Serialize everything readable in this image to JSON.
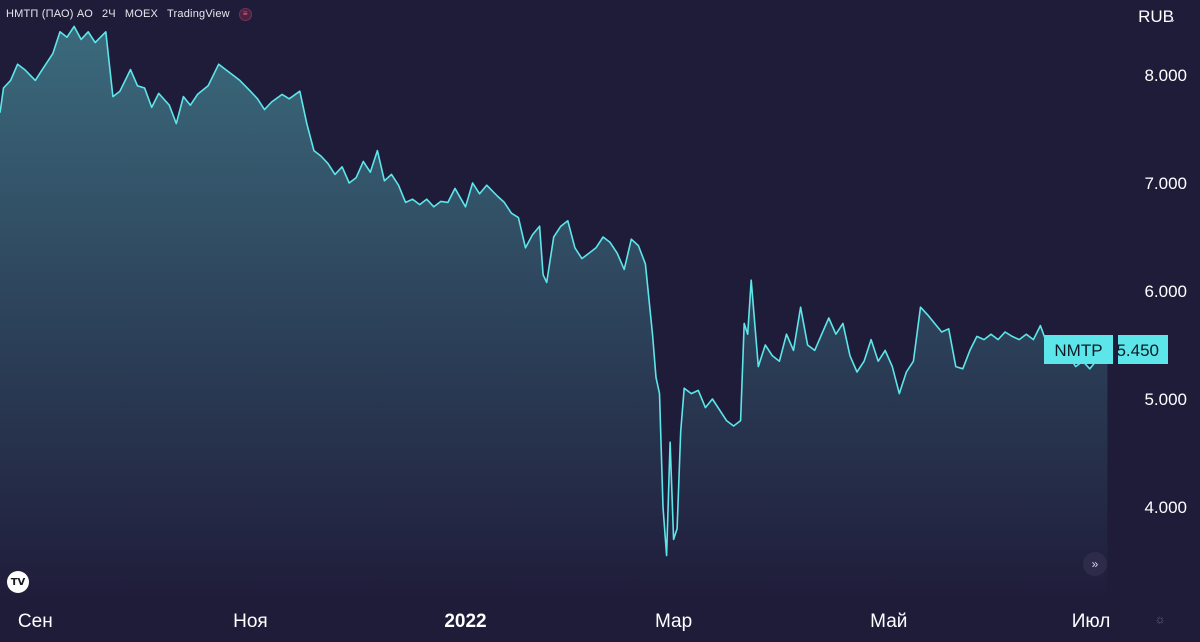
{
  "header": {
    "symbol": "НМТП (ПАО) АО",
    "interval": "2Ч",
    "exchange": "MOEX",
    "provider": "TradingView",
    "exchange_icon": "exchange-badge-icon"
  },
  "currency_label": "RUB",
  "price_tag": {
    "ticker": "NMTP",
    "value": "5.450"
  },
  "colors": {
    "background": "#1f1c3a",
    "line": "#5de6ea",
    "fill_top": "#3b6a7c",
    "price_tag_bg": "#5de6ea",
    "price_tag_text": "#0d1a24"
  },
  "chart_data": {
    "type": "area",
    "title": "",
    "xlabel": "",
    "ylabel": "",
    "yticks": [
      "4.000",
      "5.000",
      "6.000",
      "7.000",
      "8.000"
    ],
    "ylim": [
      3.45,
      8.55
    ],
    "xticks": [
      {
        "label": "Сен",
        "date": "2021-09-01"
      },
      {
        "label": "Ноя",
        "date": "2021-11-01"
      },
      {
        "label": "2022",
        "date": "2022-01-01"
      },
      {
        "label": "Мар",
        "date": "2022-03-01"
      },
      {
        "label": "Май",
        "date": "2022-05-01"
      },
      {
        "label": "Июл",
        "date": "2022-07-01"
      }
    ],
    "xlim": [
      "2021-08-22",
      "2022-07-05"
    ],
    "grid": false,
    "series": [
      {
        "name": "NMTP",
        "points": [
          [
            "2021-08-22",
            7.65
          ],
          [
            "2021-08-23",
            7.88
          ],
          [
            "2021-08-25",
            7.95
          ],
          [
            "2021-08-27",
            8.1
          ],
          [
            "2021-08-29",
            8.05
          ],
          [
            "2021-09-01",
            7.95
          ],
          [
            "2021-09-03",
            8.05
          ],
          [
            "2021-09-06",
            8.2
          ],
          [
            "2021-09-08",
            8.4
          ],
          [
            "2021-09-10",
            8.35
          ],
          [
            "2021-09-12",
            8.45
          ],
          [
            "2021-09-14",
            8.33
          ],
          [
            "2021-09-16",
            8.4
          ],
          [
            "2021-09-18",
            8.3
          ],
          [
            "2021-09-21",
            8.4
          ],
          [
            "2021-09-23",
            7.8
          ],
          [
            "2021-09-25",
            7.85
          ],
          [
            "2021-09-28",
            8.05
          ],
          [
            "2021-09-30",
            7.9
          ],
          [
            "2021-10-02",
            7.88
          ],
          [
            "2021-10-04",
            7.7
          ],
          [
            "2021-10-06",
            7.83
          ],
          [
            "2021-10-09",
            7.72
          ],
          [
            "2021-10-11",
            7.55
          ],
          [
            "2021-10-13",
            7.8
          ],
          [
            "2021-10-15",
            7.72
          ],
          [
            "2021-10-17",
            7.82
          ],
          [
            "2021-10-20",
            7.9
          ],
          [
            "2021-10-23",
            8.1
          ],
          [
            "2021-10-25",
            8.05
          ],
          [
            "2021-10-27",
            8.0
          ],
          [
            "2021-10-29",
            7.95
          ],
          [
            "2021-11-01",
            7.85
          ],
          [
            "2021-11-03",
            7.78
          ],
          [
            "2021-11-05",
            7.68
          ],
          [
            "2021-11-07",
            7.75
          ],
          [
            "2021-11-10",
            7.82
          ],
          [
            "2021-11-12",
            7.78
          ],
          [
            "2021-11-15",
            7.85
          ],
          [
            "2021-11-17",
            7.55
          ],
          [
            "2021-11-19",
            7.3
          ],
          [
            "2021-11-21",
            7.25
          ],
          [
            "2021-11-23",
            7.18
          ],
          [
            "2021-11-25",
            7.08
          ],
          [
            "2021-11-27",
            7.15
          ],
          [
            "2021-11-29",
            7.0
          ],
          [
            "2021-12-01",
            7.05
          ],
          [
            "2021-12-03",
            7.2
          ],
          [
            "2021-12-05",
            7.1
          ],
          [
            "2021-12-07",
            7.3
          ],
          [
            "2021-12-09",
            7.02
          ],
          [
            "2021-12-11",
            7.08
          ],
          [
            "2021-12-13",
            6.98
          ],
          [
            "2021-12-15",
            6.82
          ],
          [
            "2021-12-17",
            6.85
          ],
          [
            "2021-12-19",
            6.8
          ],
          [
            "2021-12-21",
            6.85
          ],
          [
            "2021-12-23",
            6.78
          ],
          [
            "2021-12-25",
            6.83
          ],
          [
            "2021-12-27",
            6.82
          ],
          [
            "2021-12-29",
            6.95
          ],
          [
            "2022-01-01",
            6.78
          ],
          [
            "2022-01-03",
            7.0
          ],
          [
            "2022-01-05",
            6.9
          ],
          [
            "2022-01-07",
            6.98
          ],
          [
            "2022-01-10",
            6.88
          ],
          [
            "2022-01-12",
            6.82
          ],
          [
            "2022-01-14",
            6.72
          ],
          [
            "2022-01-16",
            6.68
          ],
          [
            "2022-01-18",
            6.4
          ],
          [
            "2022-01-20",
            6.52
          ],
          [
            "2022-01-22",
            6.6
          ],
          [
            "2022-01-23",
            6.15
          ],
          [
            "2022-01-24",
            6.08
          ],
          [
            "2022-01-26",
            6.5
          ],
          [
            "2022-01-28",
            6.6
          ],
          [
            "2022-01-30",
            6.65
          ],
          [
            "2022-02-01",
            6.4
          ],
          [
            "2022-02-03",
            6.3
          ],
          [
            "2022-02-05",
            6.35
          ],
          [
            "2022-02-07",
            6.4
          ],
          [
            "2022-02-09",
            6.5
          ],
          [
            "2022-02-11",
            6.45
          ],
          [
            "2022-02-13",
            6.35
          ],
          [
            "2022-02-15",
            6.2
          ],
          [
            "2022-02-17",
            6.48
          ],
          [
            "2022-02-19",
            6.42
          ],
          [
            "2022-02-21",
            6.25
          ],
          [
            "2022-02-23",
            5.6
          ],
          [
            "2022-02-24",
            5.2
          ],
          [
            "2022-02-25",
            5.05
          ],
          [
            "2022-02-26",
            4.0
          ],
          [
            "2022-02-27",
            3.55
          ],
          [
            "2022-02-28",
            4.6
          ],
          [
            "2022-03-01",
            3.7
          ],
          [
            "2022-03-02",
            3.8
          ],
          [
            "2022-03-03",
            4.7
          ],
          [
            "2022-03-04",
            5.1
          ],
          [
            "2022-03-06",
            5.05
          ],
          [
            "2022-03-08",
            5.08
          ],
          [
            "2022-03-10",
            4.92
          ],
          [
            "2022-03-12",
            5.0
          ],
          [
            "2022-03-14",
            4.9
          ],
          [
            "2022-03-16",
            4.8
          ],
          [
            "2022-03-18",
            4.75
          ],
          [
            "2022-03-20",
            4.8
          ],
          [
            "2022-03-21",
            5.7
          ],
          [
            "2022-03-22",
            5.6
          ],
          [
            "2022-03-23",
            6.1
          ],
          [
            "2022-03-25",
            5.3
          ],
          [
            "2022-03-27",
            5.5
          ],
          [
            "2022-03-29",
            5.4
          ],
          [
            "2022-03-31",
            5.35
          ],
          [
            "2022-04-02",
            5.6
          ],
          [
            "2022-04-04",
            5.45
          ],
          [
            "2022-04-06",
            5.85
          ],
          [
            "2022-04-08",
            5.5
          ],
          [
            "2022-04-10",
            5.45
          ],
          [
            "2022-04-12",
            5.6
          ],
          [
            "2022-04-14",
            5.75
          ],
          [
            "2022-04-16",
            5.6
          ],
          [
            "2022-04-18",
            5.7
          ],
          [
            "2022-04-20",
            5.4
          ],
          [
            "2022-04-22",
            5.25
          ],
          [
            "2022-04-24",
            5.35
          ],
          [
            "2022-04-26",
            5.55
          ],
          [
            "2022-04-28",
            5.35
          ],
          [
            "2022-04-30",
            5.45
          ],
          [
            "2022-05-02",
            5.3
          ],
          [
            "2022-05-04",
            5.05
          ],
          [
            "2022-05-06",
            5.25
          ],
          [
            "2022-05-08",
            5.35
          ],
          [
            "2022-05-10",
            5.85
          ],
          [
            "2022-05-12",
            5.78
          ],
          [
            "2022-05-14",
            5.7
          ],
          [
            "2022-05-16",
            5.62
          ],
          [
            "2022-05-18",
            5.65
          ],
          [
            "2022-05-20",
            5.3
          ],
          [
            "2022-05-22",
            5.28
          ],
          [
            "2022-05-24",
            5.45
          ],
          [
            "2022-05-26",
            5.58
          ],
          [
            "2022-05-28",
            5.55
          ],
          [
            "2022-05-30",
            5.6
          ],
          [
            "2022-06-01",
            5.55
          ],
          [
            "2022-06-03",
            5.62
          ],
          [
            "2022-06-05",
            5.58
          ],
          [
            "2022-06-07",
            5.55
          ],
          [
            "2022-06-09",
            5.6
          ],
          [
            "2022-06-11",
            5.55
          ],
          [
            "2022-06-13",
            5.68
          ],
          [
            "2022-06-15",
            5.5
          ],
          [
            "2022-06-17",
            5.38
          ],
          [
            "2022-06-19",
            5.35
          ],
          [
            "2022-06-21",
            5.4
          ],
          [
            "2022-06-23",
            5.3
          ],
          [
            "2022-06-25",
            5.35
          ],
          [
            "2022-06-27",
            5.28
          ],
          [
            "2022-06-30",
            5.4
          ],
          [
            "2022-07-02",
            5.45
          ]
        ]
      }
    ]
  }
}
